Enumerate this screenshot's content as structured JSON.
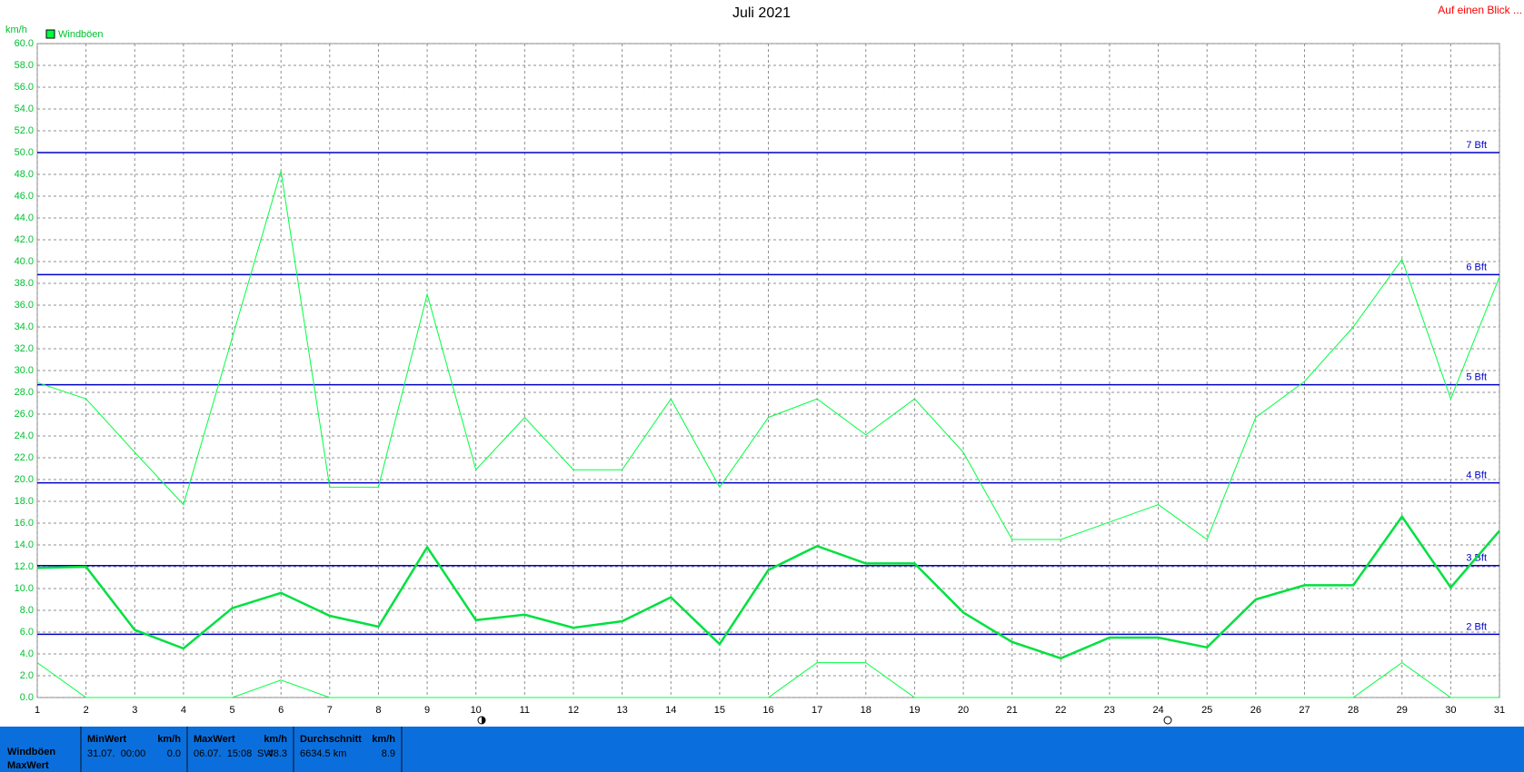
{
  "chart_data": {
    "type": "line",
    "title": "Juli 2021",
    "y_label": "km/h",
    "x": [
      1,
      2,
      3,
      4,
      5,
      6,
      7,
      8,
      9,
      10,
      11,
      12,
      13,
      14,
      15,
      16,
      17,
      18,
      19,
      20,
      21,
      22,
      23,
      24,
      25,
      26,
      27,
      28,
      29,
      30,
      31
    ],
    "xlim": [
      1,
      31
    ],
    "xticks": [
      1,
      2,
      3,
      4,
      5,
      6,
      7,
      8,
      9,
      10,
      11,
      12,
      13,
      14,
      15,
      16,
      17,
      18,
      19,
      20,
      21,
      22,
      23,
      24,
      25,
      26,
      27,
      28,
      29,
      30,
      31
    ],
    "ylim": [
      0,
      60
    ],
    "yticks": [
      {
        "value": 0,
        "label": "0.0"
      },
      {
        "value": 2,
        "label": "2.0"
      },
      {
        "value": 4,
        "label": "4.0"
      },
      {
        "value": 6,
        "label": "6.0"
      },
      {
        "value": 8,
        "label": "8.0"
      },
      {
        "value": 10,
        "label": "10.0"
      },
      {
        "value": 12,
        "label": "12.0"
      },
      {
        "value": 14,
        "label": "14.0"
      },
      {
        "value": 16,
        "label": "16.0"
      },
      {
        "value": 18,
        "label": "18.0"
      },
      {
        "value": 20,
        "label": "20.0"
      },
      {
        "value": 22,
        "label": "22.0"
      },
      {
        "value": 24,
        "label": "24.0"
      },
      {
        "value": 26,
        "label": "26.0"
      },
      {
        "value": 28,
        "label": "28.0"
      },
      {
        "value": 30,
        "label": "30.0"
      },
      {
        "value": 32,
        "label": "32.0"
      },
      {
        "value": 34,
        "label": "34.0"
      },
      {
        "value": 36,
        "label": "36.0"
      },
      {
        "value": 38,
        "label": "38.0"
      },
      {
        "value": 40,
        "label": "40.0"
      },
      {
        "value": 42,
        "label": "42.0"
      },
      {
        "value": 44,
        "label": "44.0"
      },
      {
        "value": 46,
        "label": "46.0"
      },
      {
        "value": 48,
        "label": "48.0"
      },
      {
        "value": 50,
        "label": "50.0"
      },
      {
        "value": 52,
        "label": "52.0"
      },
      {
        "value": 54,
        "label": "54.0"
      },
      {
        "value": 56,
        "label": "56.0"
      },
      {
        "value": 58,
        "label": "58.0"
      },
      {
        "value": 60,
        "label": "60.0"
      }
    ],
    "grid": true,
    "legend": "top-left",
    "series": [
      {
        "name": "Windböen",
        "color": "#00ff40",
        "line_width": 1,
        "values": [
          28.9,
          27.4,
          22.5,
          17.7,
          33.0,
          48.3,
          19.3,
          19.3,
          37.0,
          20.9,
          25.7,
          20.9,
          20.9,
          27.4,
          19.3,
          25.7,
          27.4,
          24.1,
          27.4,
          22.5,
          14.5,
          14.5,
          16.1,
          17.7,
          14.5,
          25.7,
          29.0,
          34.0,
          40.2,
          27.4,
          38.6
        ]
      },
      {
        "color": "#00e040",
        "line_width": 2.5,
        "values": [
          11.9,
          12.0,
          6.2,
          4.5,
          8.2,
          9.6,
          7.5,
          6.5,
          13.8,
          7.1,
          7.6,
          6.4,
          7.0,
          9.2,
          4.9,
          11.7,
          13.9,
          12.3,
          12.3,
          7.8,
          5.1,
          3.6,
          5.5,
          5.5,
          4.6,
          9.0,
          10.3,
          10.3,
          16.6,
          10.1,
          15.3
        ]
      },
      {
        "color": "#00ff40",
        "line_width": 1,
        "values": [
          3.2,
          0,
          0,
          0,
          0,
          1.6,
          0,
          0,
          0,
          0,
          0,
          0,
          0,
          0,
          0,
          0,
          3.2,
          3.2,
          0,
          0,
          0,
          0,
          0,
          0,
          0,
          0,
          0,
          0,
          3.2,
          0,
          0
        ]
      }
    ],
    "ref_color": "#0000c8",
    "ref_lines": [
      {
        "value": 5.8,
        "label": "2 Bft"
      },
      {
        "value": 12.1,
        "label": "3 Bft"
      },
      {
        "value": 19.7,
        "label": "4 Bft"
      },
      {
        "value": 28.7,
        "label": "5 Bft"
      },
      {
        "value": 38.8,
        "label": "6 Bft"
      },
      {
        "value": 50.0,
        "label": "7 Bft"
      }
    ]
  },
  "link": "Auf einen Blick ...",
  "summary": {
    "row_labels": [
      "Windböen",
      "MaxWert"
    ],
    "columns": [
      {
        "header": "MinWert",
        "unit": "km/h",
        "detail": "31.07.  00:00",
        "value": "0.0"
      },
      {
        "header": "MaxWert",
        "unit": "km/h",
        "detail": "06.07.  15:08",
        "dir": "SW",
        "value": "48.3"
      },
      {
        "header": "Durchschnitt",
        "unit": "km/h",
        "detail": "6634.5 km",
        "value": "8.9"
      }
    ]
  }
}
